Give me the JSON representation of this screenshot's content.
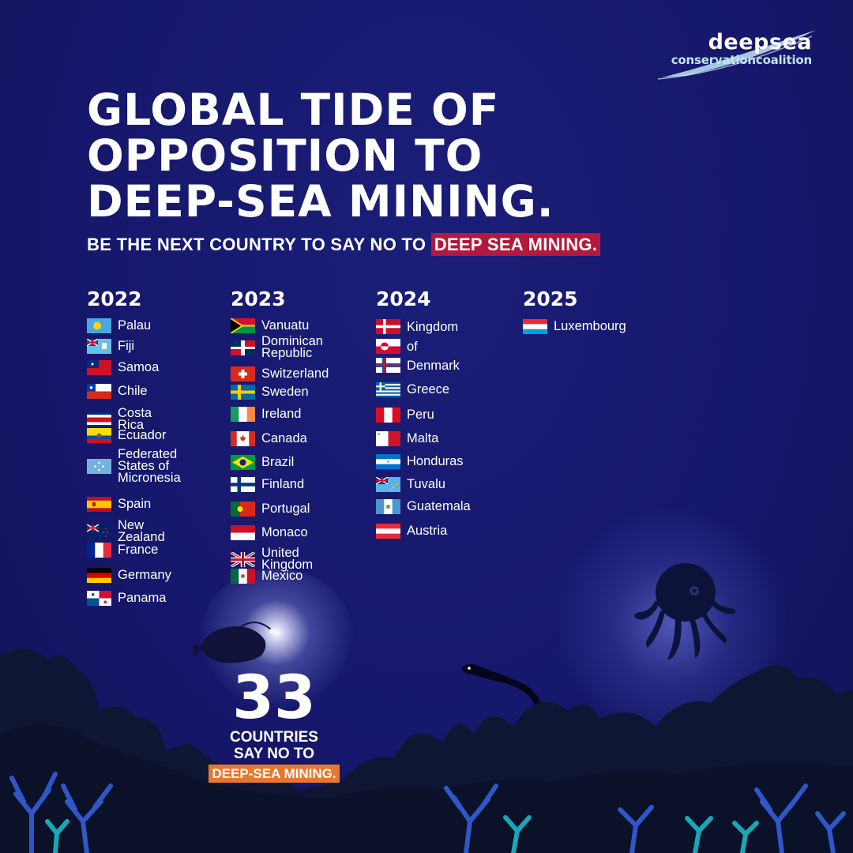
{
  "logo": {
    "line1": "deepsea",
    "line2": "conservationcoalition"
  },
  "title": "GLOBAL TIDE OF OPPOSITION TO DEEP-SEA MINING.",
  "subtitle": {
    "text": "BE THE NEXT COUNTRY TO  SAY NO TO ",
    "highlight": "DEEP SEA MINING.",
    "highlight_color": "#b3193c"
  },
  "columns": [
    {
      "year": "2022",
      "countries": [
        "Palau",
        "Fiji",
        "Samoa",
        "Chile",
        "Costa Rica",
        "Ecuador",
        "Federated States of Micronesia",
        "Spain",
        "New Zealand",
        "France",
        "Germany",
        "Panama"
      ]
    },
    {
      "year": "2023",
      "countries": [
        "Vanuatu",
        "Dominican Republic",
        "Switzerland",
        "Sweden",
        "Ireland",
        "Canada",
        "Brazil",
        "Finland",
        "Portugal",
        "Monaco",
        "United Kingdom",
        "Mexico"
      ]
    },
    {
      "year": "2024",
      "countries": [
        "Kingdom of Denmark",
        "Greece",
        "Peru",
        "Malta",
        "Honduras",
        "Tuvalu",
        "Guatemala",
        "Austria"
      ]
    },
    {
      "year": "2025",
      "countries": [
        "Luxembourg"
      ]
    }
  ],
  "counter": {
    "number": "33",
    "line1": "COUNTRIES",
    "line2": "SAY NO TO",
    "highlight": "DEEP-SEA MINING.",
    "highlight_color": "#e8772e"
  },
  "colors": {
    "background": "#16176b",
    "text": "#ffffff",
    "coral_blue": "#2f57c9",
    "coral_teal": "#1aa7b5"
  }
}
